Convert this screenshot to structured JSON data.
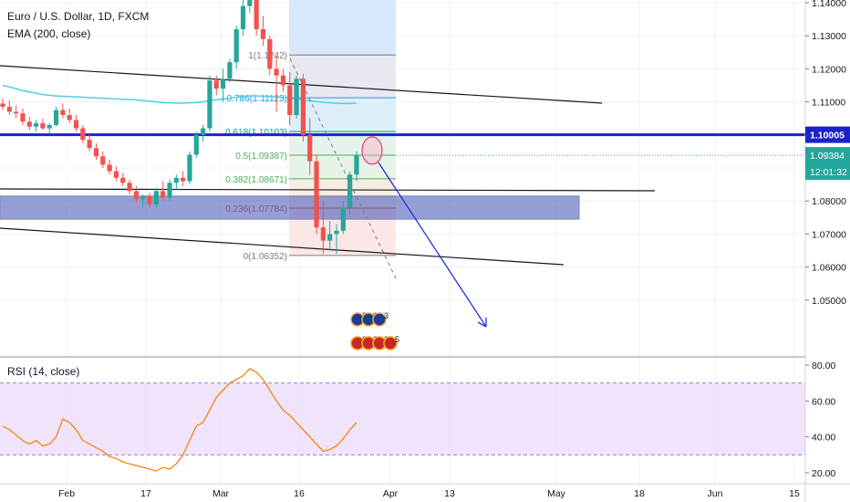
{
  "colors": {
    "up": "#26a69a",
    "down": "#ef5350",
    "ema": "#4dd0e1",
    "rsi": "#f57c00",
    "support_zone": "#3f51b5",
    "key_level": "#1a23c9",
    "projection": "#2231d6",
    "fib_band_upper": "#d6e8fb",
    "fib_band_lower": "#fbd9d9"
  },
  "header": {
    "symbol": "Euro / U.S. Dollar, 1D, FXCM",
    "indicator": "EMA (200, close)"
  },
  "rsi_panel": {
    "label": "RSI (14, close)"
  },
  "price_labels": {
    "key_level": "1.10005",
    "last_price": "1.09384",
    "countdown": "12:01:32"
  },
  "event_badges": {
    "eu": [
      "2",
      "6",
      "3"
    ],
    "us": [
      "6",
      "3",
      "2",
      "5"
    ]
  },
  "chart_data": [
    {
      "type": "candlestick",
      "ylim": [
        1.0425,
        1.1425
      ],
      "y_ticks": [
        "1.14000",
        "1.13000",
        "1.12000",
        "1.11000",
        "1.10000",
        "1.09000",
        "1.08000",
        "1.07000",
        "1.06000",
        "1.05000"
      ],
      "x_ticks": [
        "Feb",
        "17",
        "Mar",
        "16",
        "Apr",
        "13",
        "May",
        "18",
        "Jun",
        "15"
      ],
      "candles": [
        {
          "o": 1.1095,
          "h": 1.111,
          "l": 1.1075,
          "c": 1.1085
        },
        {
          "o": 1.1085,
          "h": 1.1105,
          "l": 1.106,
          "c": 1.107
        },
        {
          "o": 1.107,
          "h": 1.109,
          "l": 1.105,
          "c": 1.1065
        },
        {
          "o": 1.1065,
          "h": 1.108,
          "l": 1.103,
          "c": 1.104
        },
        {
          "o": 1.104,
          "h": 1.1055,
          "l": 1.1015,
          "c": 1.1025
        },
        {
          "o": 1.1025,
          "h": 1.1045,
          "l": 1.101,
          "c": 1.1035
        },
        {
          "o": 1.1035,
          "h": 1.105,
          "l": 1.1015,
          "c": 1.102
        },
        {
          "o": 1.102,
          "h": 1.1035,
          "l": 1.1005,
          "c": 1.103
        },
        {
          "o": 1.103,
          "h": 1.1085,
          "l": 1.1025,
          "c": 1.1075
        },
        {
          "o": 1.1075,
          "h": 1.1095,
          "l": 1.105,
          "c": 1.106
        },
        {
          "o": 1.106,
          "h": 1.108,
          "l": 1.1035,
          "c": 1.1045
        },
        {
          "o": 1.1045,
          "h": 1.106,
          "l": 1.101,
          "c": 1.102
        },
        {
          "o": 1.102,
          "h": 1.103,
          "l": 1.0975,
          "c": 1.0985
        },
        {
          "o": 1.0985,
          "h": 1.1,
          "l": 1.095,
          "c": 1.096
        },
        {
          "o": 1.096,
          "h": 1.0975,
          "l": 1.0925,
          "c": 1.0935
        },
        {
          "o": 1.0935,
          "h": 1.095,
          "l": 1.09,
          "c": 1.091
        },
        {
          "o": 1.091,
          "h": 1.0925,
          "l": 1.088,
          "c": 1.089
        },
        {
          "o": 1.089,
          "h": 1.0905,
          "l": 1.086,
          "c": 1.087
        },
        {
          "o": 1.087,
          "h": 1.0885,
          "l": 1.0845,
          "c": 1.0855
        },
        {
          "o": 1.0855,
          "h": 1.0865,
          "l": 1.082,
          "c": 1.083
        },
        {
          "o": 1.083,
          "h": 1.0845,
          "l": 1.0795,
          "c": 1.0805
        },
        {
          "o": 1.0805,
          "h": 1.082,
          "l": 1.078,
          "c": 1.0815
        },
        {
          "o": 1.0815,
          "h": 1.0825,
          "l": 1.078,
          "c": 1.079
        },
        {
          "o": 1.079,
          "h": 1.084,
          "l": 1.078,
          "c": 1.083
        },
        {
          "o": 1.083,
          "h": 1.086,
          "l": 1.08,
          "c": 1.081
        },
        {
          "o": 1.081,
          "h": 1.0865,
          "l": 1.08,
          "c": 1.0855
        },
        {
          "o": 1.0855,
          "h": 1.088,
          "l": 1.0835,
          "c": 1.087
        },
        {
          "o": 1.087,
          "h": 1.089,
          "l": 1.0845,
          "c": 1.086
        },
        {
          "o": 1.086,
          "h": 1.095,
          "l": 1.085,
          "c": 1.094
        },
        {
          "o": 1.094,
          "h": 1.101,
          "l": 1.093,
          "c": 1.1
        },
        {
          "o": 1.1,
          "h": 1.103,
          "l": 1.098,
          "c": 1.102
        },
        {
          "o": 1.102,
          "h": 1.118,
          "l": 1.101,
          "c": 1.1165
        },
        {
          "o": 1.1165,
          "h": 1.118,
          "l": 1.112,
          "c": 1.114
        },
        {
          "o": 1.114,
          "h": 1.12,
          "l": 1.11,
          "c": 1.117
        },
        {
          "o": 1.117,
          "h": 1.123,
          "l": 1.116,
          "c": 1.122
        },
        {
          "o": 1.122,
          "h": 1.133,
          "l": 1.12,
          "c": 1.132
        },
        {
          "o": 1.132,
          "h": 1.142,
          "l": 1.13,
          "c": 1.139
        },
        {
          "o": 1.139,
          "h": 1.145,
          "l": 1.137,
          "c": 1.142
        },
        {
          "o": 1.142,
          "h": 1.144,
          "l": 1.13,
          "c": 1.132
        },
        {
          "o": 1.132,
          "h": 1.136,
          "l": 1.127,
          "c": 1.129
        },
        {
          "o": 1.129,
          "h": 1.13,
          "l": 1.118,
          "c": 1.12
        },
        {
          "o": 1.12,
          "h": 1.124,
          "l": 1.107,
          "c": 1.118
        },
        {
          "o": 1.118,
          "h": 1.12,
          "l": 1.113,
          "c": 1.115
        },
        {
          "o": 1.115,
          "h": 1.119,
          "l": 1.103,
          "c": 1.106
        },
        {
          "o": 1.106,
          "h": 1.118,
          "l": 1.105,
          "c": 1.117
        },
        {
          "o": 1.117,
          "h": 1.1185,
          "l": 1.098,
          "c": 1.1
        },
        {
          "o": 1.1,
          "h": 1.105,
          "l": 1.088,
          "c": 1.092
        },
        {
          "o": 1.092,
          "h": 1.094,
          "l": 1.07,
          "c": 1.072
        },
        {
          "o": 1.072,
          "h": 1.08,
          "l": 1.064,
          "c": 1.068
        },
        {
          "o": 1.068,
          "h": 1.074,
          "l": 1.065,
          "c": 1.07
        },
        {
          "o": 1.07,
          "h": 1.073,
          "l": 1.064,
          "c": 1.071
        },
        {
          "o": 1.071,
          "h": 1.08,
          "l": 1.07,
          "c": 1.078
        },
        {
          "o": 1.078,
          "h": 1.089,
          "l": 1.076,
          "c": 1.088
        },
        {
          "o": 1.088,
          "h": 1.095,
          "l": 1.086,
          "c": 1.0938
        }
      ],
      "ema200": [
        1.115,
        1.1145,
        1.114,
        1.1134,
        1.113,
        1.1126,
        1.1122,
        1.112,
        1.1118,
        1.1117,
        1.1116,
        1.1115,
        1.1114,
        1.1113,
        1.1112,
        1.1111,
        1.111,
        1.1109,
        1.1108,
        1.1107,
        1.1106,
        1.1104,
        1.1102,
        1.11,
        1.1098,
        1.1097,
        1.1096,
        1.1096,
        1.1097,
        1.1098,
        1.11,
        1.1104,
        1.1106,
        1.1109,
        1.1111,
        1.1114,
        1.1116,
        1.1118,
        1.1118,
        1.1117,
        1.1116,
        1.1115,
        1.1113,
        1.1111,
        1.1109,
        1.1106,
        1.1103,
        1.1101,
        1.1099,
        1.1097,
        1.1096,
        1.1095,
        1.1095,
        1.1096
      ],
      "fibonacci": [
        {
          "label": "0(1.06352)",
          "value": 1.06352
        },
        {
          "label": "0.236(1.07784)",
          "value": 1.07784
        },
        {
          "label": "0.382(1.08671)",
          "value": 1.08671
        },
        {
          "label": "0.5(1.09387)",
          "value": 1.09387
        },
        {
          "label": "0.618(1.10103)",
          "value": 1.10103
        },
        {
          "label": "0.786(1.11123)",
          "value": 1.11123
        },
        {
          "label": "1(1.1242)",
          "value": 1.1242
        }
      ],
      "key_level": 1.10005,
      "support_zone": [
        1.0745,
        1.0815
      ]
    },
    {
      "type": "line",
      "name": "RSI",
      "ylim": [
        18,
        82
      ],
      "y_ticks": [
        "80.00",
        "60.00",
        "40.00",
        "20.00"
      ],
      "bands": [
        30,
        70
      ],
      "values": [
        46,
        44,
        41,
        38,
        36,
        38,
        35,
        36,
        40,
        50,
        48,
        44,
        38,
        36,
        34,
        32,
        29,
        28,
        26,
        25,
        24,
        23,
        22,
        21,
        23,
        22,
        25,
        30,
        38,
        46,
        48,
        55,
        62,
        66,
        70,
        72,
        74,
        78,
        76,
        72,
        66,
        60,
        55,
        52,
        48,
        44,
        40,
        36,
        32,
        33,
        35,
        39,
        44,
        48
      ]
    }
  ]
}
